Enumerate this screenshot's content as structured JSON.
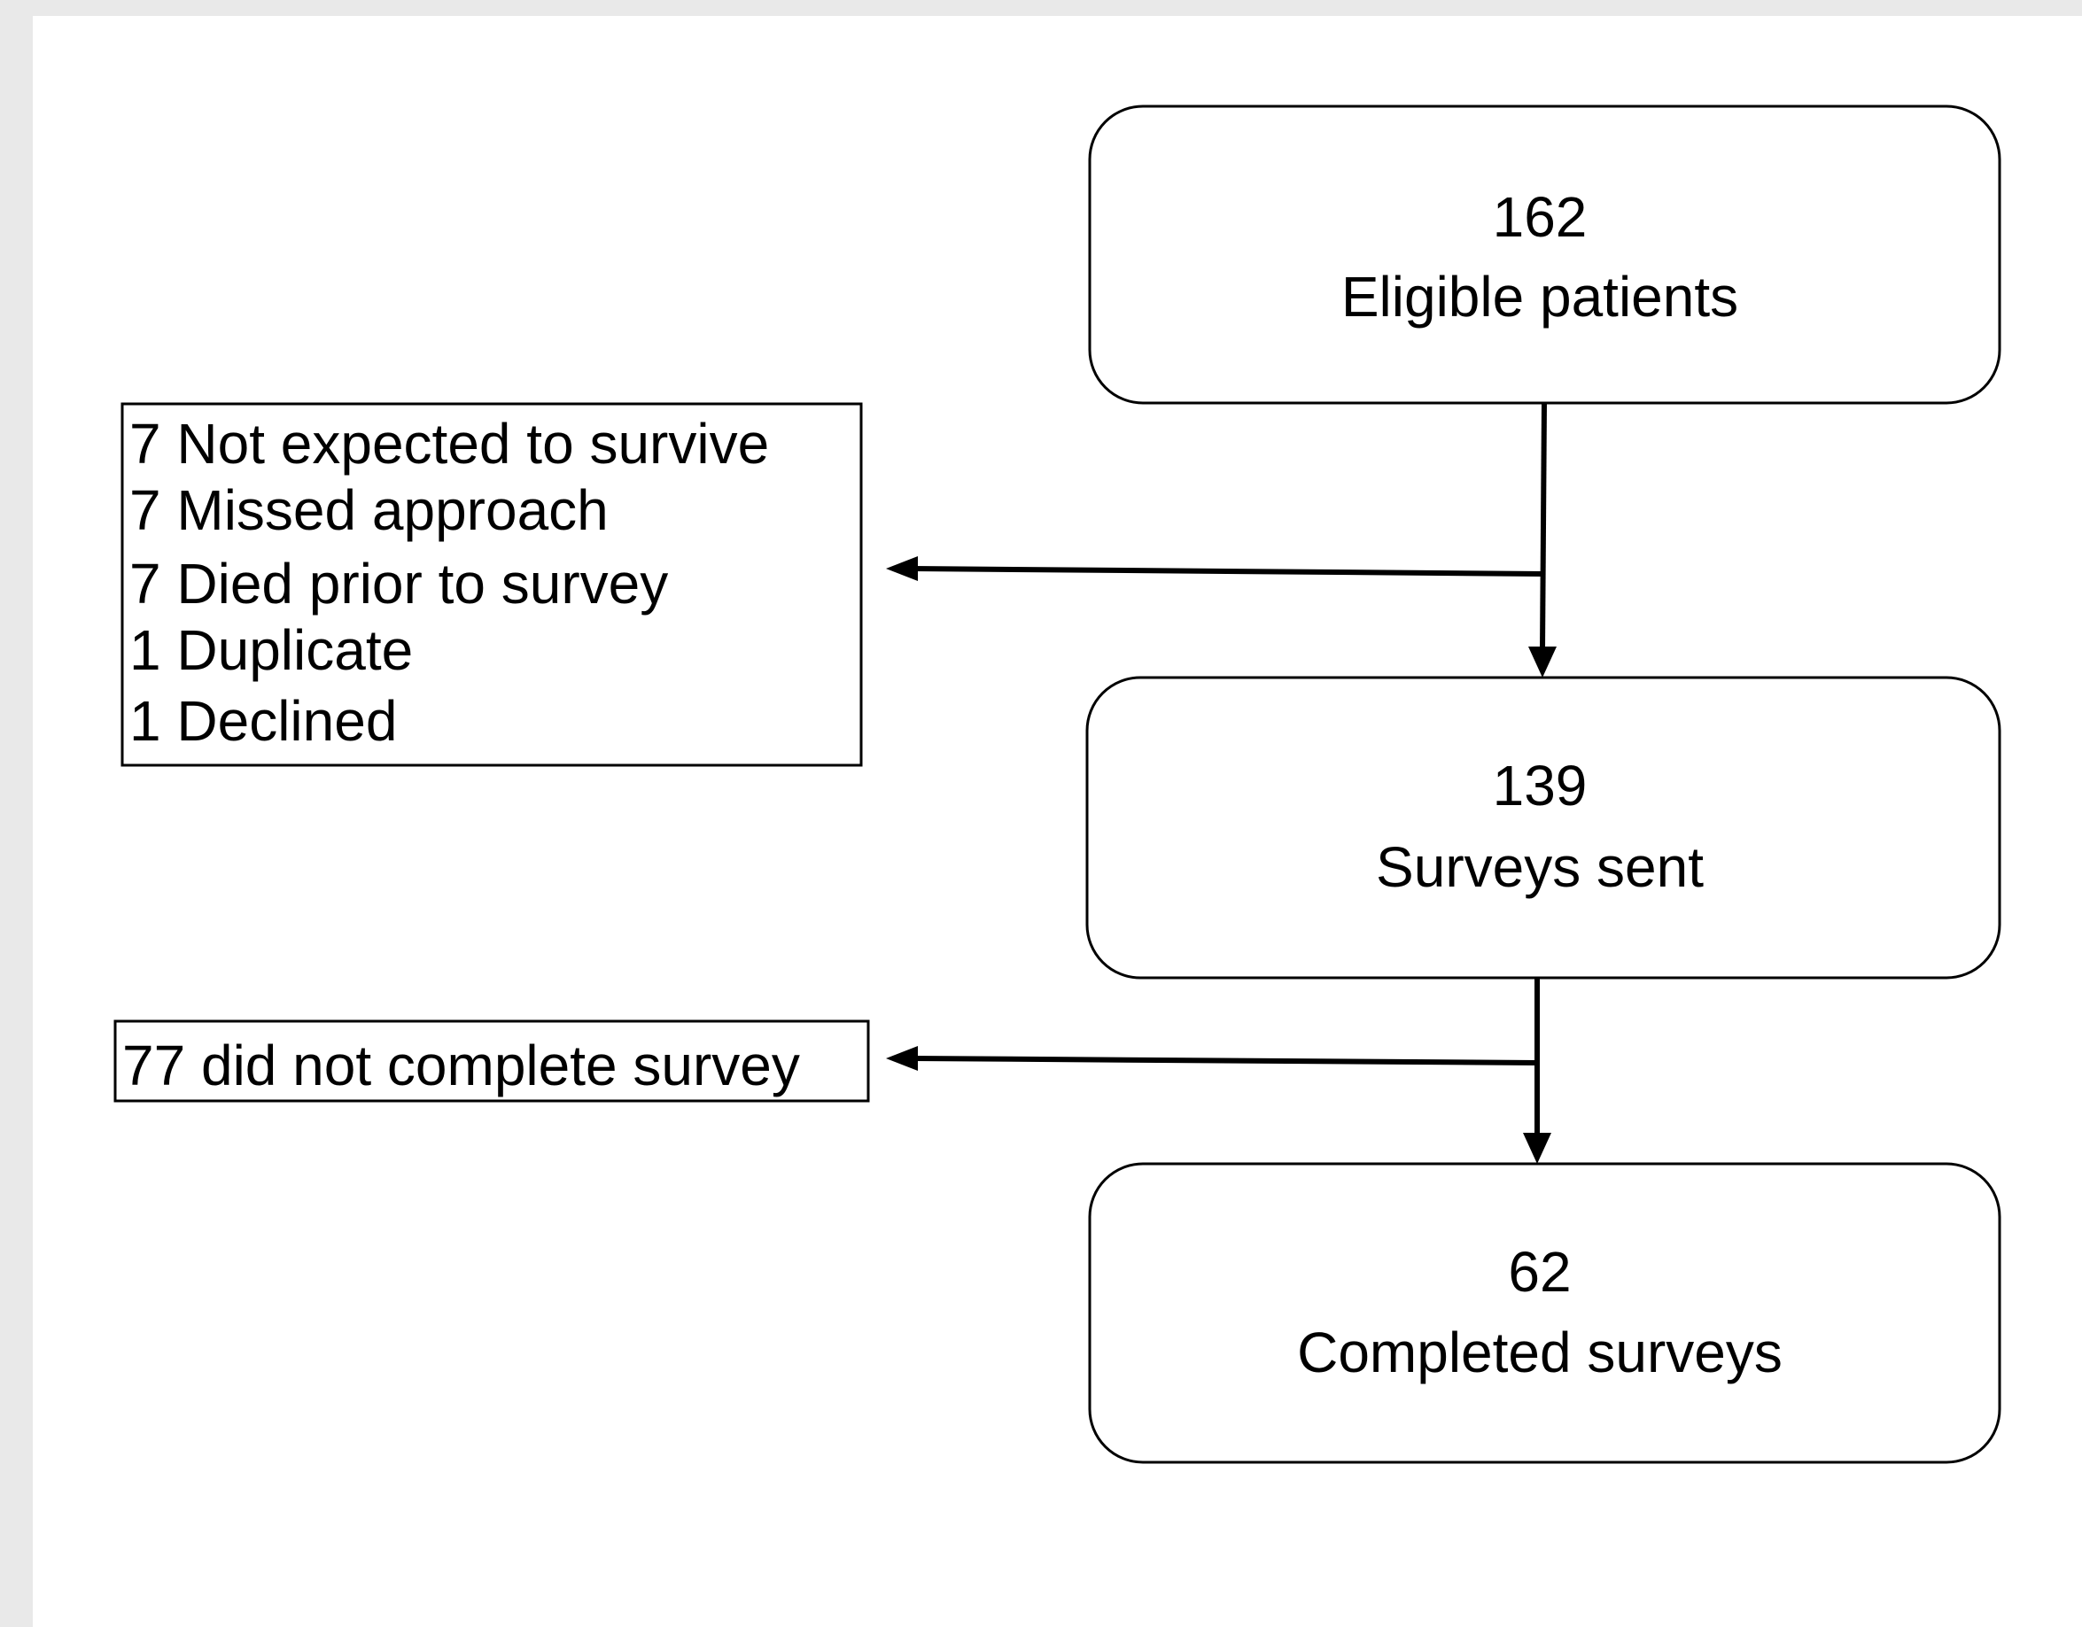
{
  "nodes": [
    {
      "count": "162",
      "label": "Eligible patients"
    },
    {
      "count": "139",
      "label": "Surveys sent"
    },
    {
      "count": "62",
      "label": "Completed surveys"
    }
  ],
  "exclusions": [
    {
      "lines": [
        "7 Not expected to survive",
        "7 Missed approach",
        "7 Died prior to survey",
        "1 Duplicate",
        "1 Declined"
      ]
    },
    {
      "lines": [
        "77 did not complete survey"
      ]
    }
  ]
}
